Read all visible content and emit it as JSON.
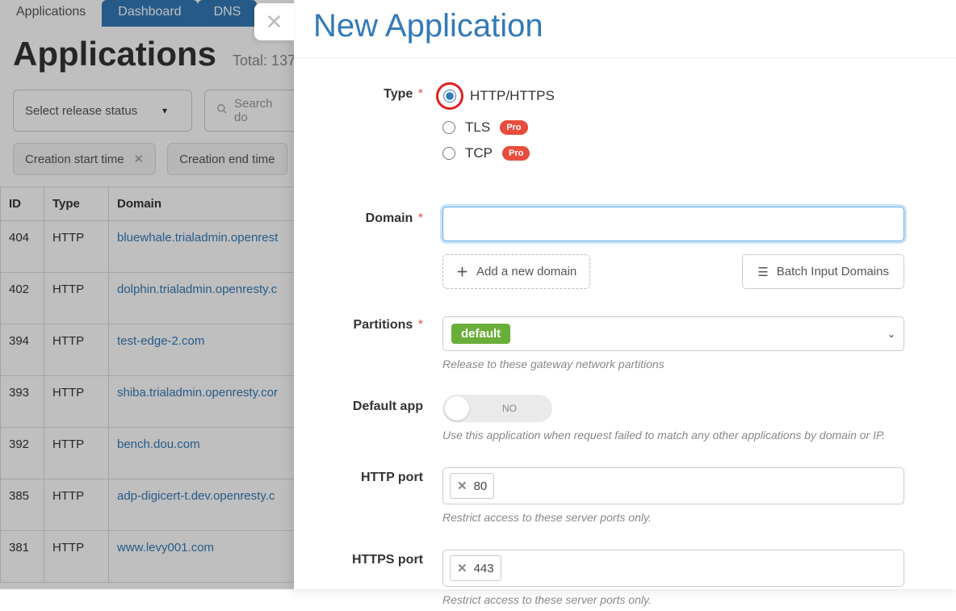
{
  "tabs": {
    "applications": "Applications",
    "dashboard": "Dashboard",
    "dns": "DNS"
  },
  "heading": {
    "title": "Applications",
    "total": "Total: 137"
  },
  "filters": {
    "release_status_placeholder": "Select release status",
    "search_placeholder": "Search do",
    "chip_start": "Creation start time",
    "chip_end": "Creation end time"
  },
  "table": {
    "columns": {
      "id": "ID",
      "type": "Type",
      "domain": "Domain"
    },
    "rows": [
      {
        "id": "404",
        "type": "HTTP",
        "domain": "bluewhale.trialadmin.openrest"
      },
      {
        "id": "402",
        "type": "HTTP",
        "domain": "dolphin.trialadmin.openresty.c"
      },
      {
        "id": "394",
        "type": "HTTP",
        "domain": "test-edge-2.com"
      },
      {
        "id": "393",
        "type": "HTTP",
        "domain": "shiba.trialadmin.openresty.cor"
      },
      {
        "id": "392",
        "type": "HTTP",
        "domain": "bench.dou.com"
      },
      {
        "id": "385",
        "type": "HTTP",
        "domain": "adp-digicert-t.dev.openresty.c"
      },
      {
        "id": "381",
        "type": "HTTP",
        "domain": "www.levy001.com"
      }
    ]
  },
  "modal": {
    "title": "New Application",
    "labels": {
      "type": "Type",
      "domain": "Domain",
      "partitions": "Partitions",
      "default_app": "Default app",
      "http_port": "HTTP port",
      "https_port": "HTTPS port"
    },
    "type_options": {
      "http": "HTTP/HTTPS",
      "tls": "TLS",
      "tcp": "TCP"
    },
    "pro_badge": "Pro",
    "add_domain": "Add a new domain",
    "batch_domains": "Batch Input Domains",
    "partitions_value": "default",
    "partitions_help": "Release to these gateway network partitions",
    "default_app_state": "NO",
    "default_app_help": "Use this application when request failed to match any other applications by domain or IP.",
    "http_port_value": "80",
    "https_port_value": "443",
    "port_help": "Restrict access to these server ports only."
  }
}
